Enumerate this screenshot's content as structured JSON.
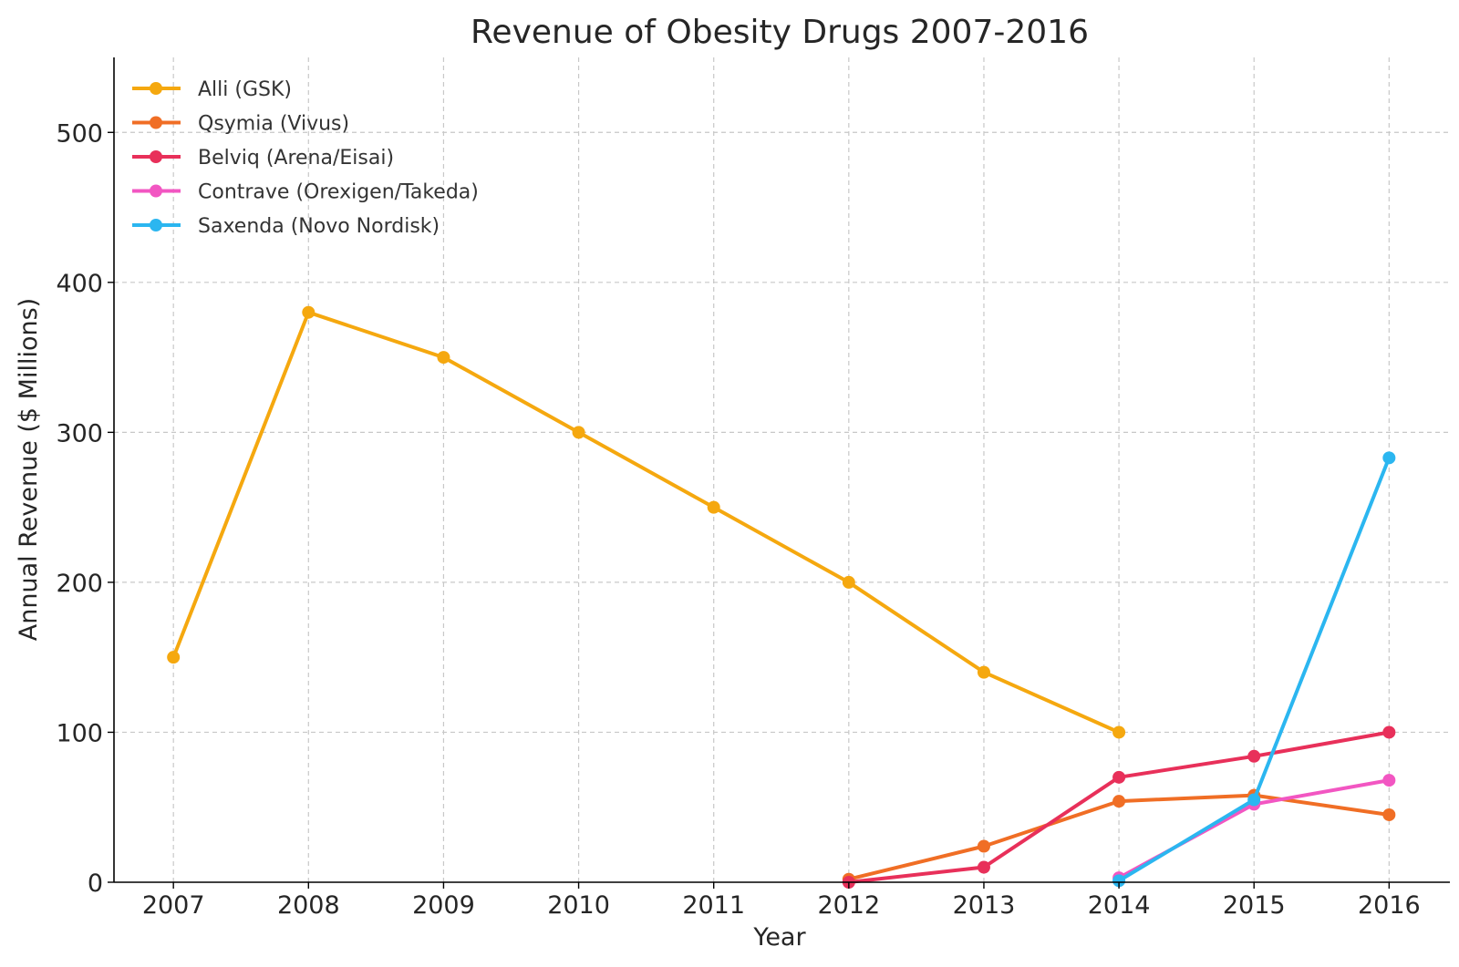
{
  "chart_data": {
    "type": "line",
    "title": "Revenue of Obesity Drugs 2007-2016",
    "xlabel": "Year",
    "ylabel": "Annual Revenue ($ Millions)",
    "x": [
      2007,
      2008,
      2009,
      2010,
      2011,
      2012,
      2013,
      2014,
      2015,
      2016
    ],
    "xlim": [
      2006.56,
      2016.45
    ],
    "ylim": [
      0,
      550
    ],
    "yticks": [
      0,
      100,
      200,
      300,
      400,
      500
    ],
    "grid": true,
    "legend_position": "top-left",
    "series": [
      {
        "name": "Alli (GSK)",
        "color": "#F5A80F",
        "x": [
          2007,
          2008,
          2009,
          2010,
          2011,
          2012,
          2013,
          2014
        ],
        "values": [
          150,
          380,
          350,
          300,
          250,
          200,
          140,
          100
        ]
      },
      {
        "name": "Qsymia (Vivus)",
        "color": "#F06E25",
        "x": [
          2012,
          2013,
          2014,
          2015,
          2016
        ],
        "values": [
          2,
          24,
          54,
          58,
          45
        ]
      },
      {
        "name": "Belviq (Arena/Eisai)",
        "color": "#E8305A",
        "x": [
          2012,
          2013,
          2014,
          2015,
          2016
        ],
        "values": [
          0,
          10,
          70,
          84,
          100
        ]
      },
      {
        "name": "Contrave (Orexigen/Takeda)",
        "color": "#F256C2",
        "x": [
          2014,
          2015,
          2016
        ],
        "values": [
          3,
          52,
          68
        ]
      },
      {
        "name": "Saxenda (Novo Nordisk)",
        "color": "#2BB6F0",
        "x": [
          2014,
          2015,
          2016
        ],
        "values": [
          1,
          55,
          283
        ]
      }
    ]
  }
}
